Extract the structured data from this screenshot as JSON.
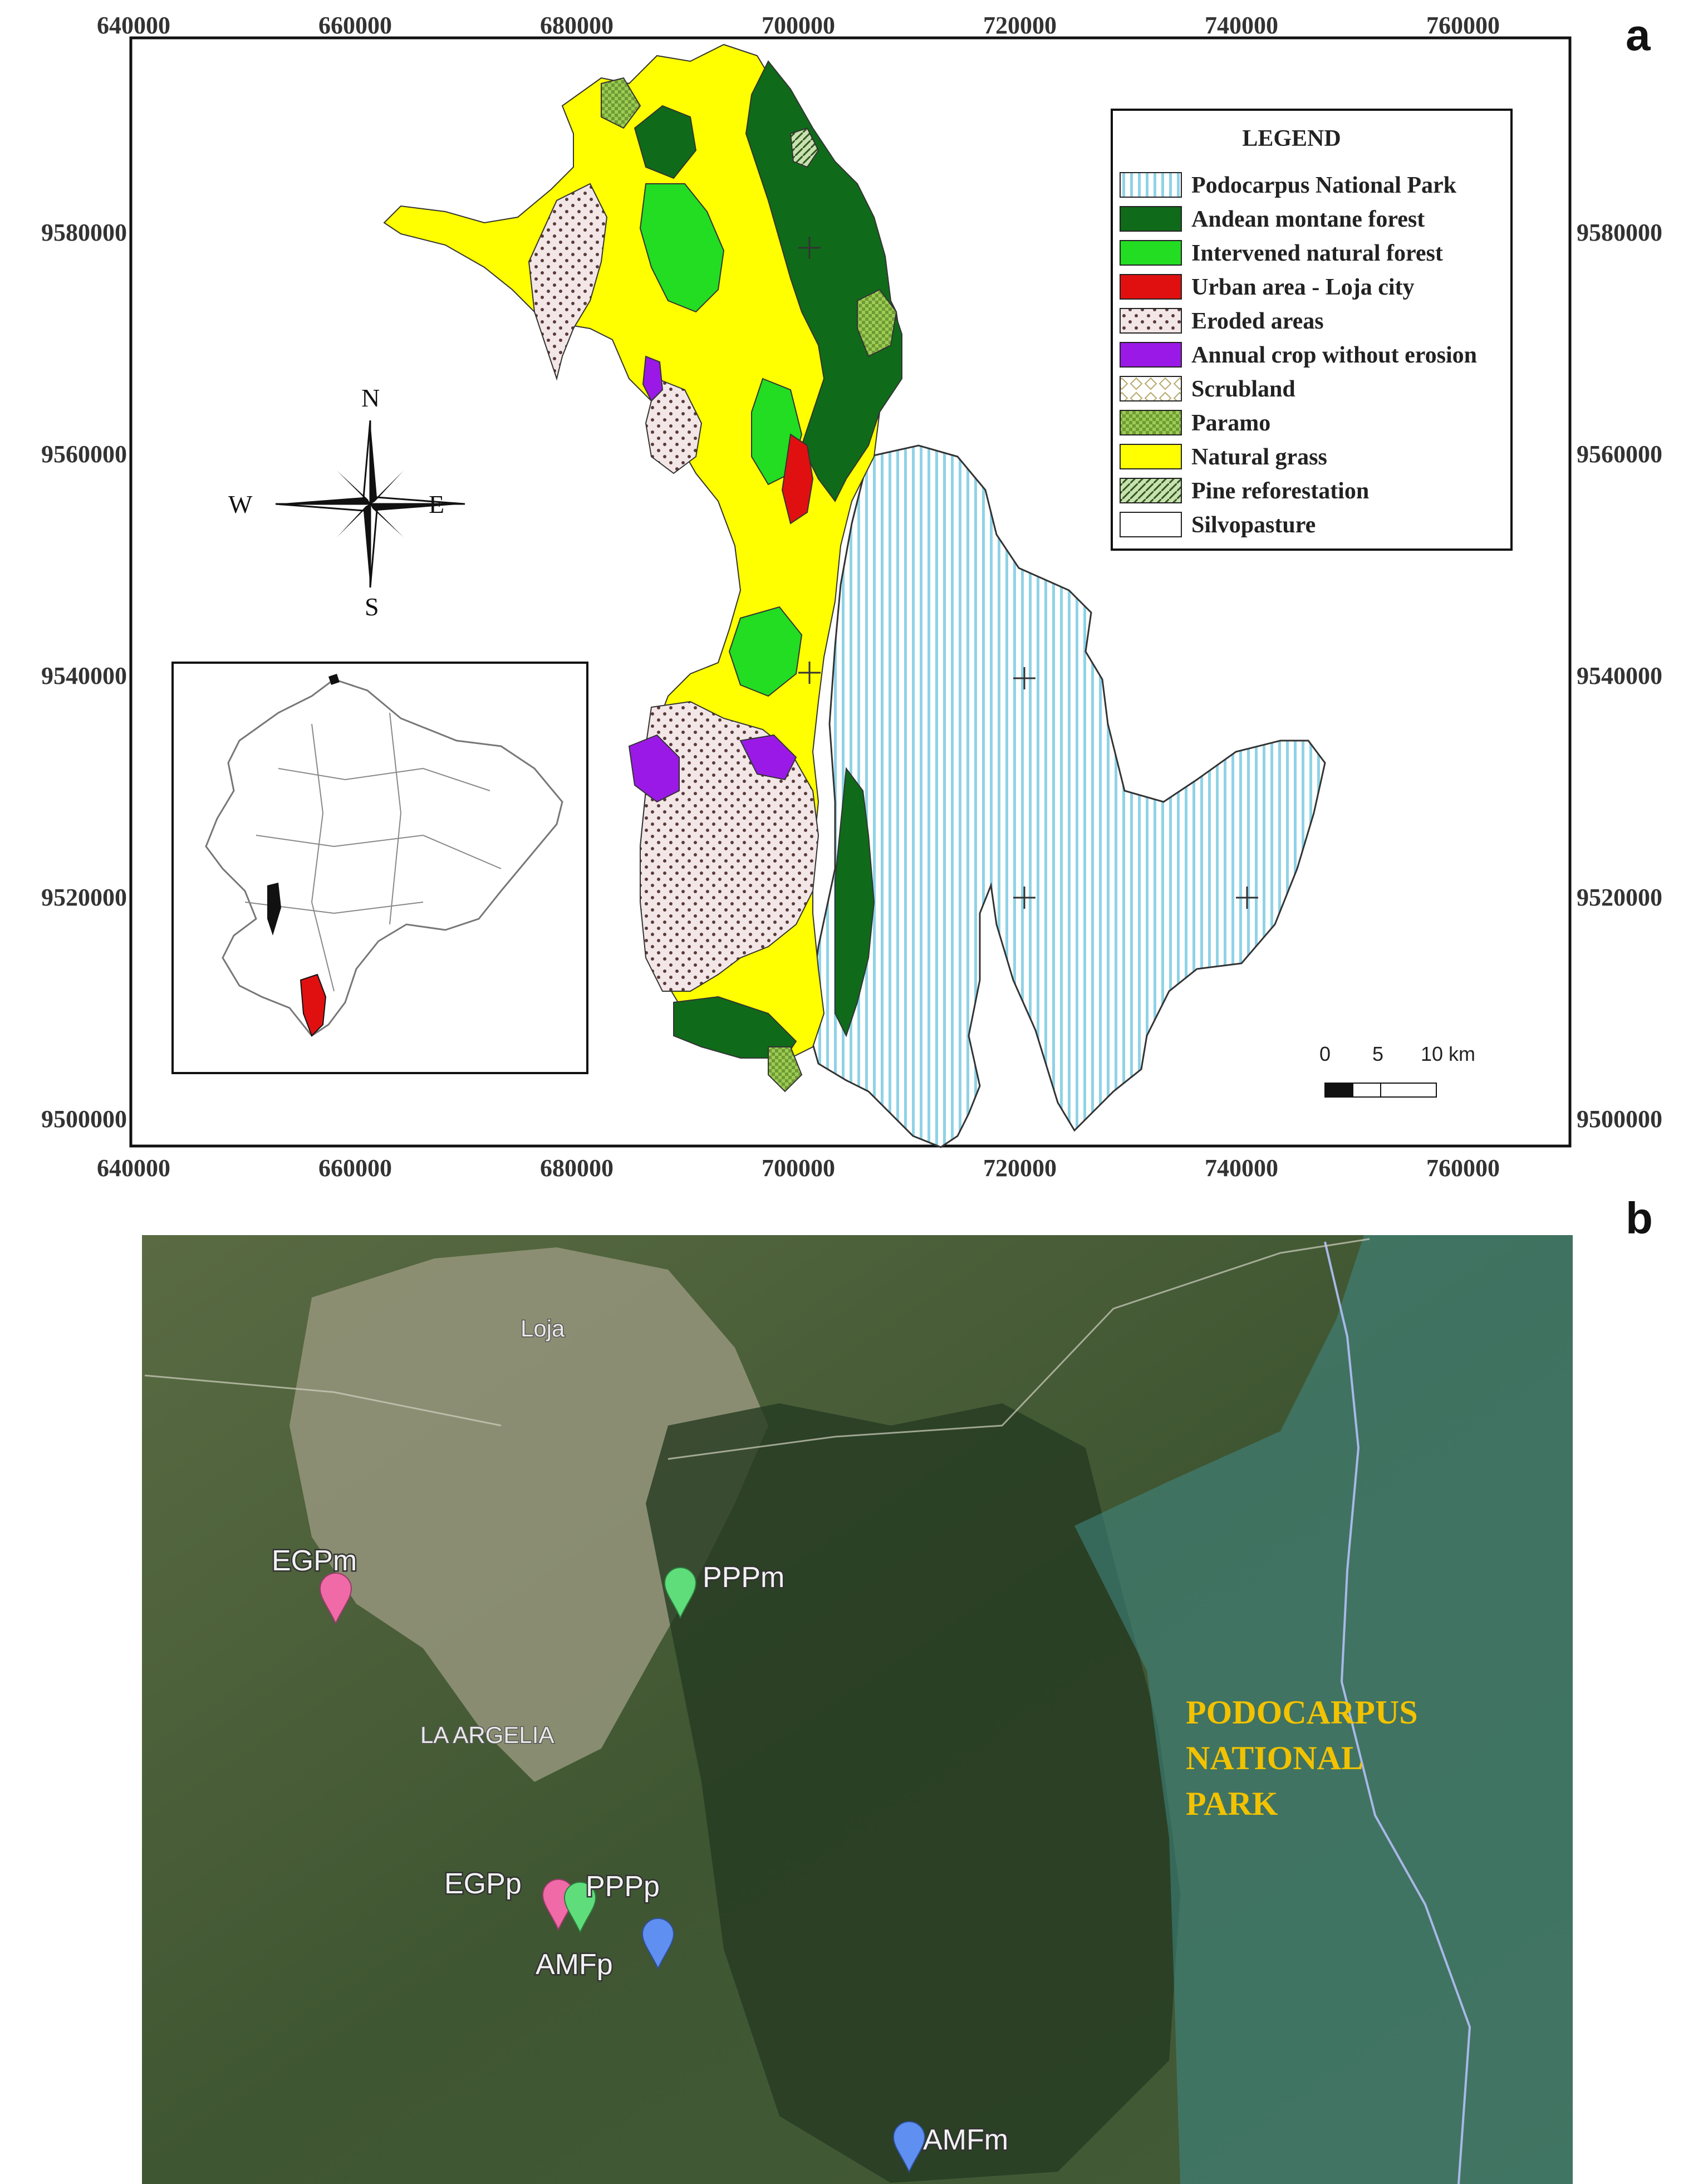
{
  "panel_a": {
    "letter": "a",
    "x_ticks": [
      "640000",
      "660000",
      "680000",
      "700000",
      "720000",
      "740000",
      "760000"
    ],
    "y_ticks": [
      "9580000",
      "9560000",
      "9540000",
      "9520000",
      "9500000"
    ],
    "legend": {
      "title": "LEGEND",
      "items": [
        {
          "label": "Podocarpus National Park",
          "color": "#ffffff",
          "pattern": "vstripes"
        },
        {
          "label": "Andean montane forest",
          "color": "#0f6b1a"
        },
        {
          "label": "Intervened natural forest",
          "color": "#22dd22"
        },
        {
          "label": "Urban area - Loja city",
          "color": "#e01010"
        },
        {
          "label": "Eroded areas",
          "color": "#f3e6e6",
          "pattern": "dots"
        },
        {
          "label": "Annual crop without erosion",
          "color": "#9b19e6"
        },
        {
          "label": "Scrubland",
          "color": "#ffffff",
          "pattern": "diamonds"
        },
        {
          "label": "Paramo",
          "color": "#9ccc55",
          "pattern": "check"
        },
        {
          "label": "Natural grass",
          "color": "#ffff00"
        },
        {
          "label": "Pine reforestation",
          "color": "#c9e0b0",
          "pattern": "hatch"
        },
        {
          "label": "Silvopasture",
          "color": "#ffffff"
        }
      ]
    },
    "compass": {
      "n": "N",
      "s": "S",
      "e": "E",
      "w": "W"
    },
    "scale_bar": {
      "labels": [
        "0",
        "5",
        "10 km"
      ]
    }
  },
  "panel_b": {
    "letter": "b",
    "place_labels": [
      "Loja",
      "LA ARGELIA"
    ],
    "park_label": [
      "PODOCARPUS",
      "NATIONAL",
      "PARK"
    ],
    "markers": [
      {
        "label": "EGPm",
        "color": "#f06aa8"
      },
      {
        "label": "PPPm",
        "color": "#5fdd7a"
      },
      {
        "label": "EGPp",
        "color": "#f06aa8"
      },
      {
        "label": "PPPp",
        "color": "#5fdd7a"
      },
      {
        "label": "AMFp",
        "color": "#5f8ff0"
      },
      {
        "label": "AMFm",
        "color": "#5f8ff0"
      }
    ]
  }
}
